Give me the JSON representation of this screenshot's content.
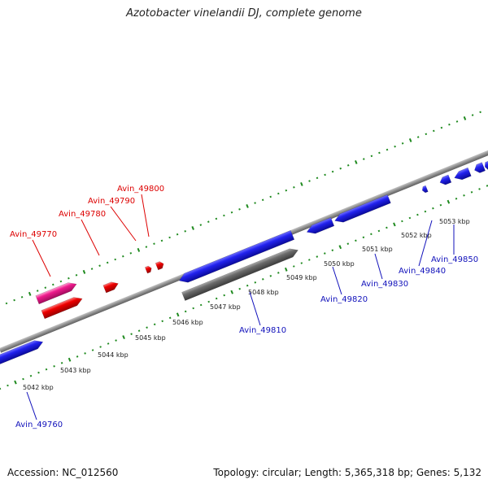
{
  "title": "Azotobacter vinelandii DJ, complete genome",
  "footer": {
    "accession": "Accession: NC_012560",
    "summary": "Topology: circular; Length: 5,365,318 bp; Genes: 5,132"
  },
  "colors": {
    "plus_strand_gene": "#ee0000",
    "plus_strand_highlight": "#ee1a8c",
    "minus_strand_gene": "#1111dd",
    "pseudo_gene": "#6b6b6b",
    "backbone": "#8e8e8e",
    "tick_dots": "#1f8a1f",
    "label_red": "#dd0000",
    "label_blue": "#1111bb"
  },
  "ticks": [
    "5042 kbp",
    "5043 kbp",
    "5044 kbp",
    "5045 kbp",
    "5046 kbp",
    "5047 kbp",
    "5048 kbp",
    "5049 kbp",
    "5050 kbp",
    "5051 kbp",
    "5052 kbp",
    "5053 kbp"
  ],
  "genes_plus": [
    {
      "label": "Avin_49770",
      "kind": "highlight"
    },
    {
      "label": "Avin_49780",
      "kind": "gene"
    },
    {
      "label": "Avin_49790",
      "kind": "gene"
    },
    {
      "label": "Avin_49800",
      "kind": "gene"
    }
  ],
  "genes_minus": [
    {
      "label": "Avin_49760"
    },
    {
      "label": "Avin_49810"
    },
    {
      "label": "Avin_49820"
    },
    {
      "label": "Avin_49830"
    },
    {
      "label": "Avin_49840"
    },
    {
      "label": "Avin_49850"
    }
  ]
}
